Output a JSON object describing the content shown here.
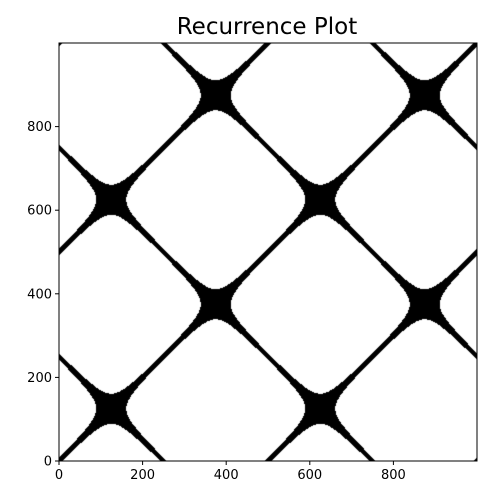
{
  "chart_data": {
    "type": "heatmap",
    "subtype": "recurrence_plot",
    "title": "Recurrence Plot",
    "xlabel": "",
    "ylabel": "",
    "xlim": [
      0,
      1000
    ],
    "ylim": [
      0,
      1000
    ],
    "x_ticks": [
      0,
      200,
      400,
      600,
      800
    ],
    "y_ticks": [
      0,
      200,
      400,
      600,
      800
    ],
    "grid": false,
    "colormap": "binary",
    "recurrent_color": "#000000",
    "background_color": "#ffffff",
    "signal_period": 500,
    "threshold": 0.1
  }
}
